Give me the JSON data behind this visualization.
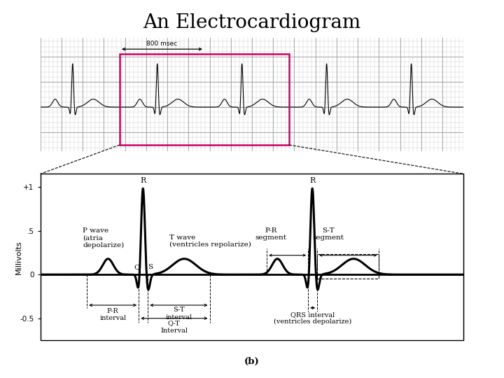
{
  "title": "An Electrocardiogram",
  "title_fontsize": 20,
  "title_font": "serif",
  "background_color": "#ffffff",
  "top_bg": "#f5f0e8",
  "grid_minor_color": "#c8c8c8",
  "grid_major_color": "#a0a0a0",
  "ecg_color": "#000000",
  "highlight_box_color": "#cc0066",
  "bottom_label": "(b)",
  "ylabel": "Millivolts",
  "ylim_detail": [
    -0.75,
    1.15
  ],
  "annotation_fontsize": 7.5
}
